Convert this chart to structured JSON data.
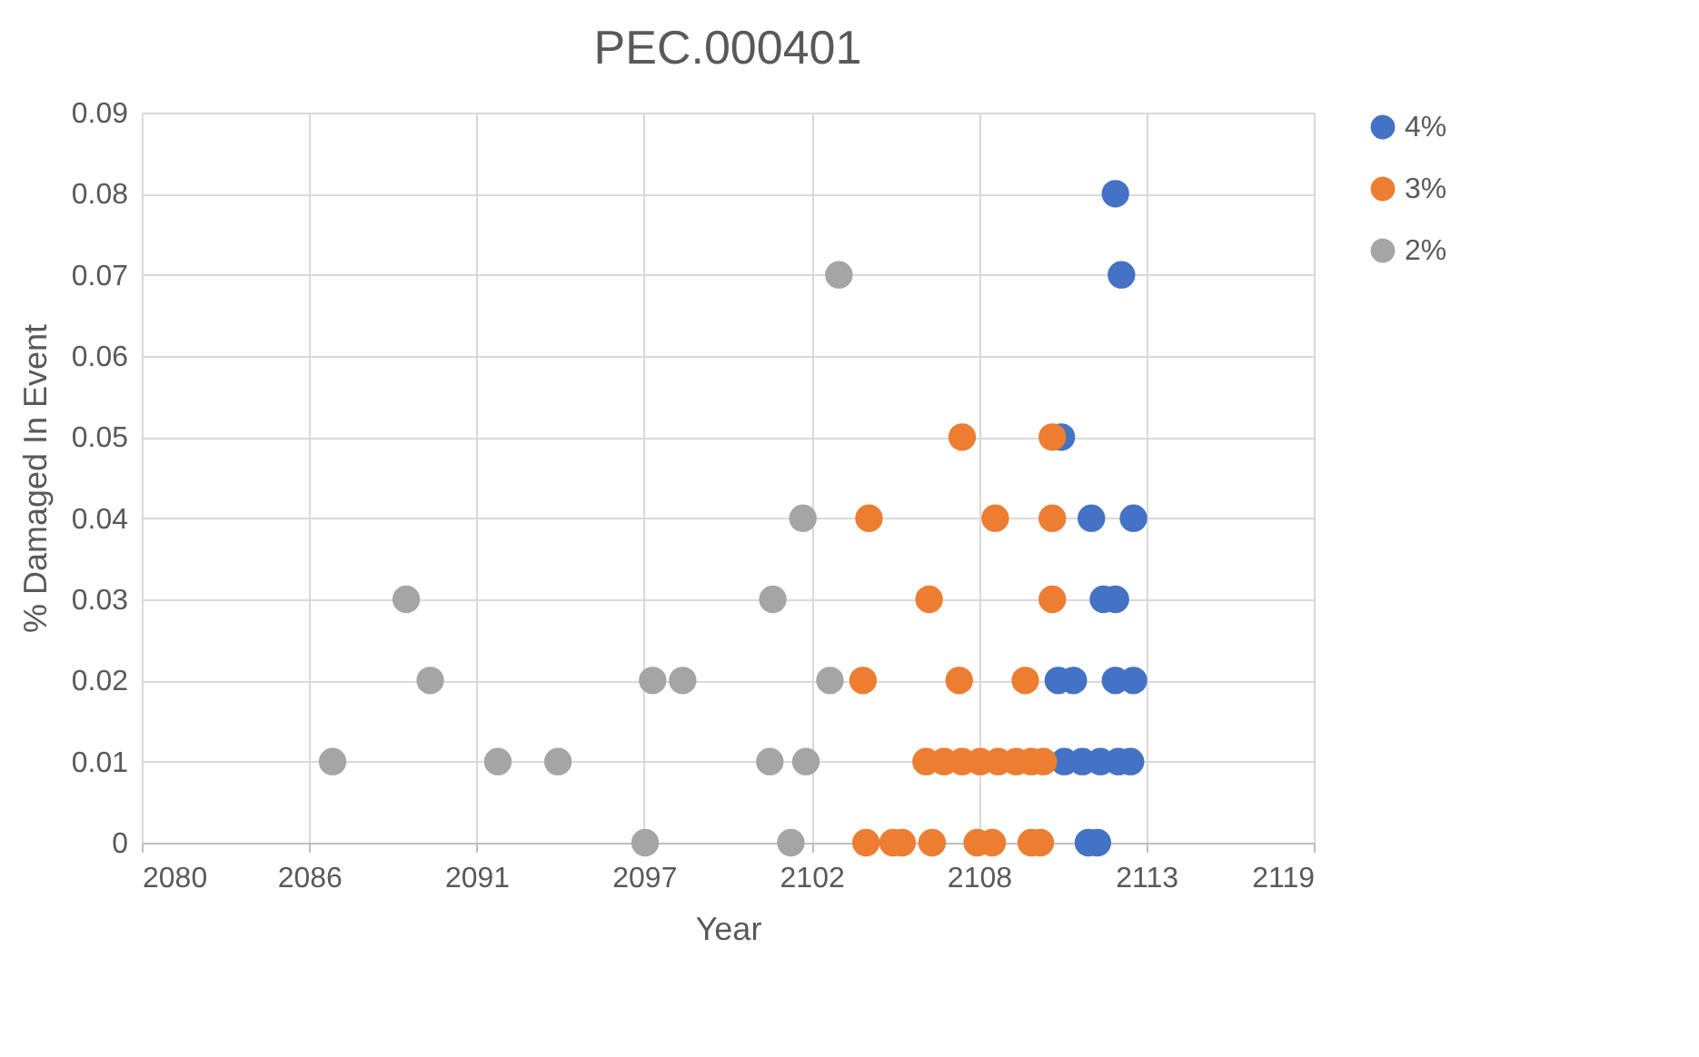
{
  "chart_data": {
    "type": "scatter",
    "title": "PEC.000401",
    "xlabel": "Year",
    "ylabel": "% Damaged In Event",
    "xlim": [
      2080,
      2119
    ],
    "xticks": [
      2080,
      {
        "value": 2085.571,
        "label": "2086"
      },
      {
        "value": 2091.143,
        "label": "2091"
      },
      {
        "value": 2096.714,
        "label": "2097"
      },
      {
        "value": 2102.286,
        "label": "2102"
      },
      {
        "value": 2107.857,
        "label": "2108"
      },
      {
        "value": 2113.429,
        "label": "2113"
      },
      2119
    ],
    "ylim": [
      0,
      0.09
    ],
    "yticks": [
      0,
      0.01,
      0.02,
      0.03,
      0.04,
      0.05,
      0.06,
      0.07,
      0.08,
      0.09
    ],
    "grid": true,
    "legend": "right",
    "marker": "circle",
    "series": [
      {
        "name": "4%",
        "color": "#4472c4",
        "x": [
          2111.5,
          2111.8,
          2110.7,
          2111.3,
          2111.9,
          2112.5,
          2112.9,
          2110.5,
          2111.0,
          2112.4,
          2113.0,
          2112.0,
          2112.4,
          2111.6,
          2113.0,
          2110.6,
          2112.6,
          2112.4
        ],
        "values": [
          0,
          0,
          0.01,
          0.01,
          0.01,
          0.01,
          0.01,
          0.02,
          0.02,
          0.02,
          0.02,
          0.03,
          0.03,
          0.04,
          0.04,
          0.05,
          0.07,
          0.08
        ]
      },
      {
        "name": "3%",
        "color": "#ed7d31",
        "x": [
          2104.1,
          2105.0,
          2105.3,
          2106.3,
          2107.8,
          2108.3,
          2109.6,
          2109.9,
          2106.1,
          2106.7,
          2107.3,
          2107.9,
          2108.5,
          2109.1,
          2109.6,
          2110.0,
          2104.0,
          2107.2,
          2109.4,
          2106.2,
          2110.3,
          2104.2,
          2108.4,
          2110.3,
          2107.3,
          2110.3
        ],
        "values": [
          0,
          0,
          0,
          0,
          0,
          0,
          0,
          0,
          0.01,
          0.01,
          0.01,
          0.01,
          0.01,
          0.01,
          0.01,
          0.01,
          0.02,
          0.02,
          0.02,
          0.03,
          0.03,
          0.04,
          0.04,
          0.04,
          0.05,
          0.05
        ]
      },
      {
        "name": "2%",
        "color": "#a5a5a5",
        "x": [
          2096.75,
          2101.6,
          2086.35,
          2091.85,
          2093.85,
          2100.9,
          2102.1,
          2089.6,
          2097.0,
          2098.0,
          2102.9,
          2088.8,
          2101.0,
          2102.0,
          2103.2
        ],
        "values": [
          0,
          0,
          0.01,
          0.01,
          0.01,
          0.01,
          0.01,
          0.02,
          0.02,
          0.02,
          0.02,
          0.03,
          0.03,
          0.04,
          0.07
        ]
      }
    ]
  }
}
